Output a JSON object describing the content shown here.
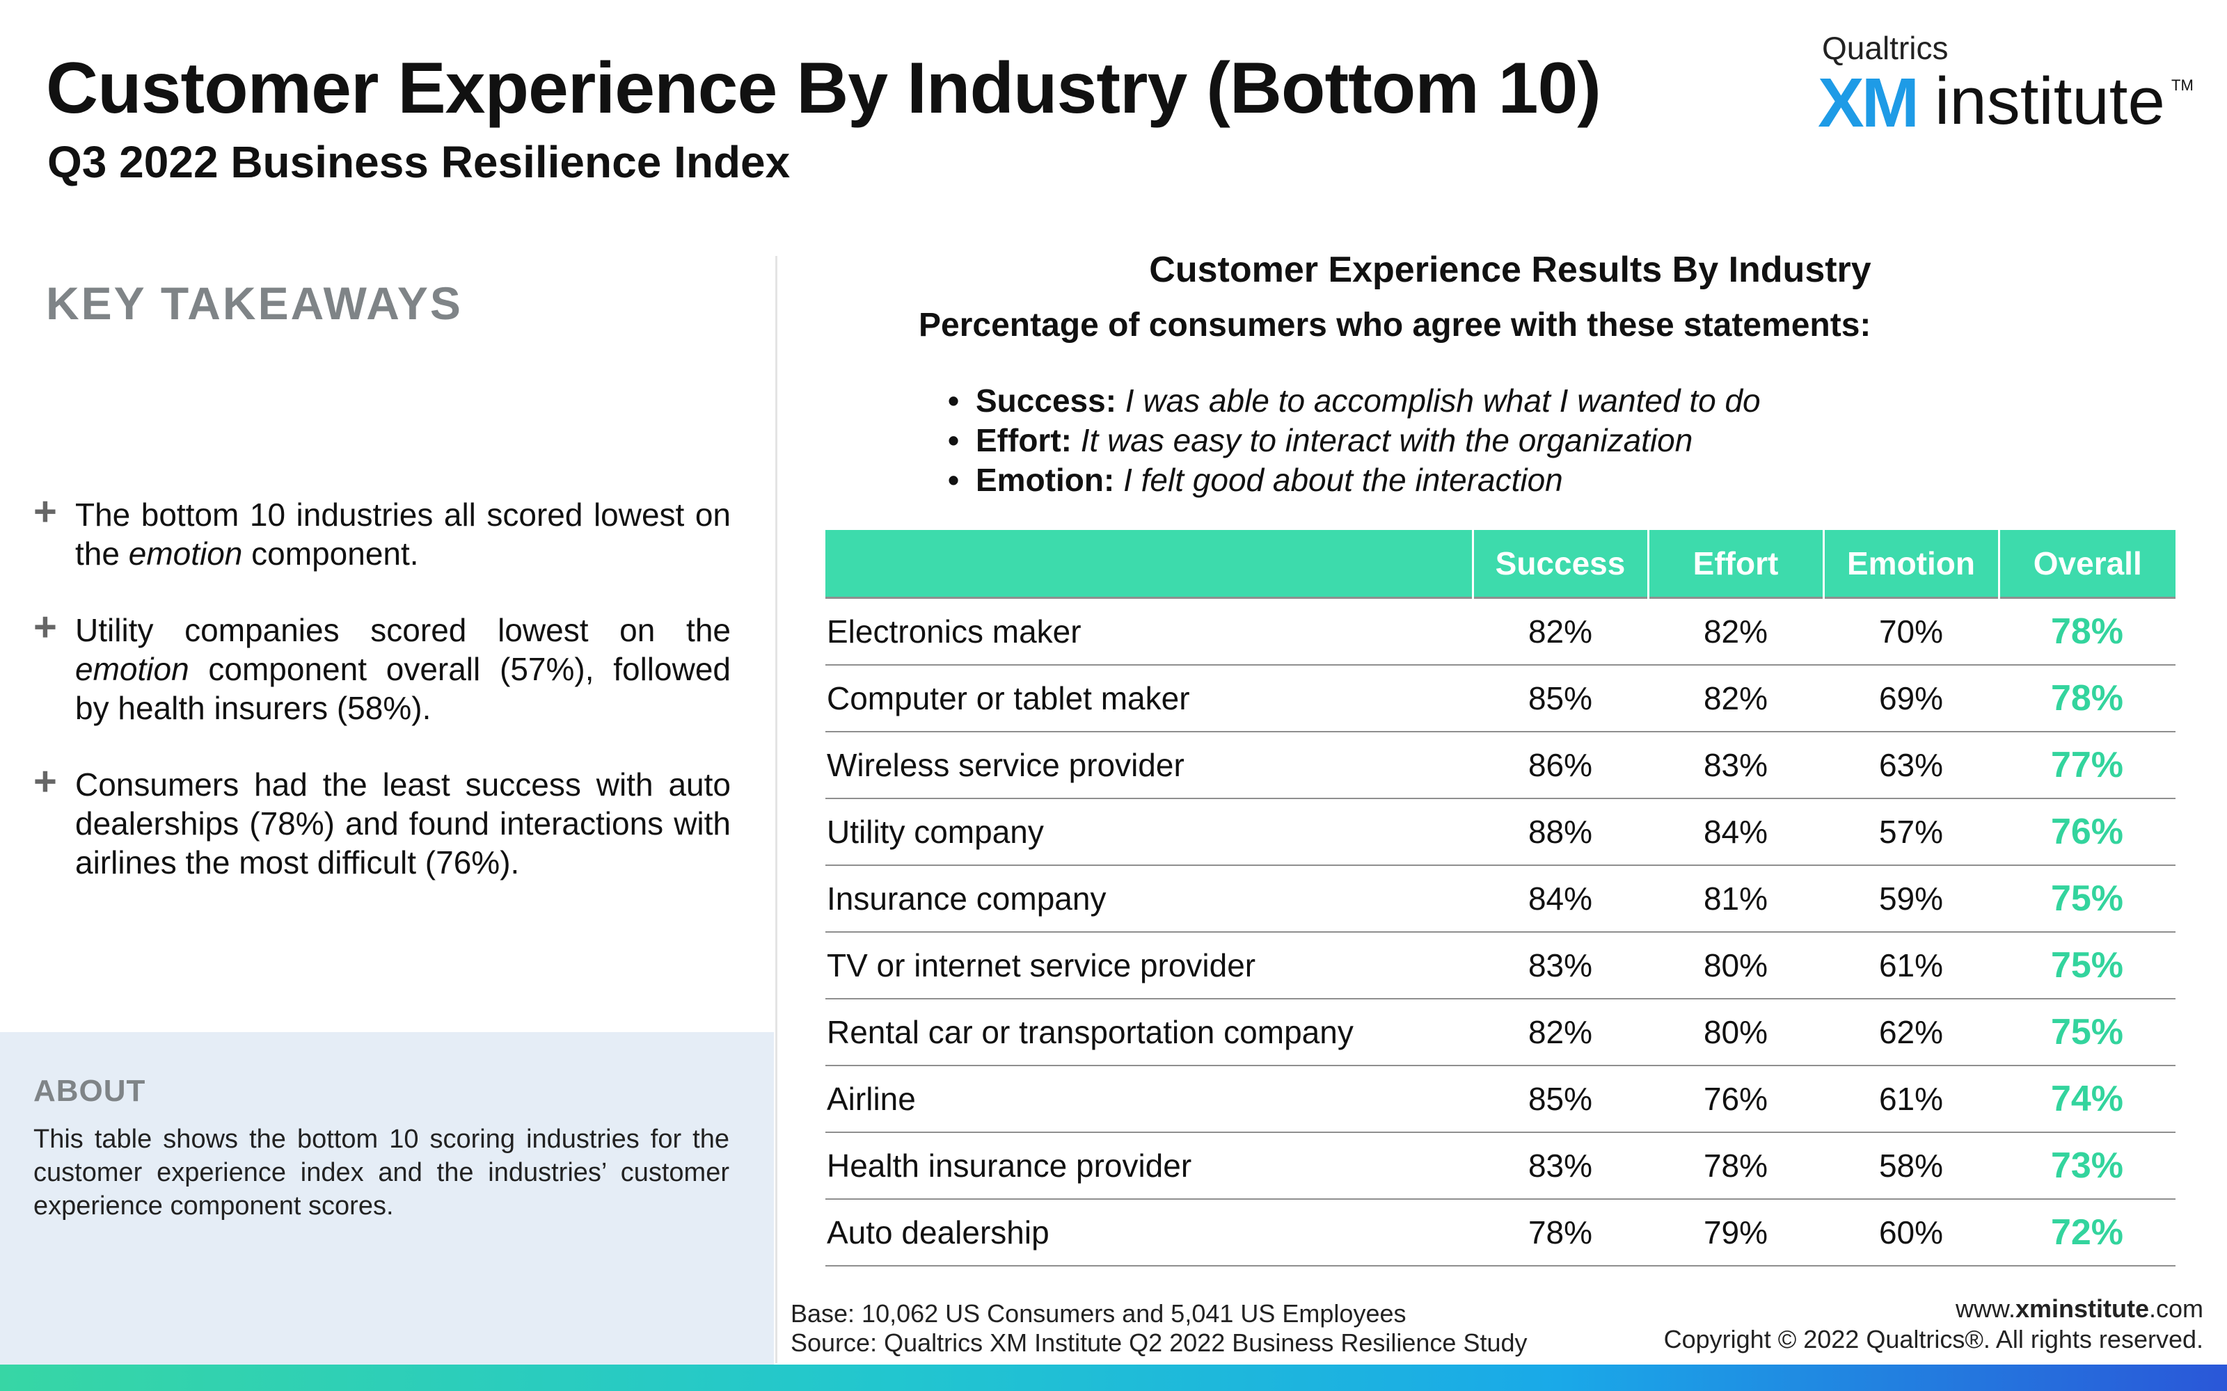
{
  "header": {
    "title": "Customer Experience By Industry (Bottom 10)",
    "subtitle": "Q3 2022 Business Resilience Index"
  },
  "logo": {
    "brand": "Qualtrics",
    "xm": "XM",
    "word": "institute",
    "tm": "TM"
  },
  "takeaways": {
    "heading": "KEY TAKEAWAYS",
    "plus": "+",
    "items": [
      {
        "before": "The bottom 10 industries all scored lowest on the ",
        "em": "emotion",
        "after": " component."
      },
      {
        "before": "Utility companies scored lowest on the ",
        "em": "emotion",
        "after": " component overall (57%), followed by health insurers (58%)."
      },
      {
        "before": "Consumers had the least success with auto dealerships (78%) and found interactions with airlines the most difficult (76%).",
        "em": "",
        "after": ""
      }
    ]
  },
  "about": {
    "heading": "ABOUT",
    "text": "This table shows the bottom 10 scoring industries for the customer experience index and the industries’ customer experience component scores."
  },
  "statements": [
    {
      "bullet": "•",
      "term": "Success:",
      "desc": "I was able to accomplish what I wanted to do"
    },
    {
      "bullet": "•",
      "term": "Effort:",
      "desc": "It was easy to interact with the organization"
    },
    {
      "bullet": "•",
      "term": "Emotion:",
      "desc": "I felt good about the interaction"
    }
  ],
  "chart_data": {
    "type": "table",
    "title": "Customer Experience Results By Industry",
    "subtitle": "Percentage of consumers who agree with these statements:",
    "columns": [
      "",
      "Success",
      "Effort",
      "Emotion",
      "Overall"
    ],
    "rows": [
      {
        "industry": "Electronics maker",
        "success": "82%",
        "effort": "82%",
        "emotion": "70%",
        "overall": "78%"
      },
      {
        "industry": "Computer or tablet maker",
        "success": "85%",
        "effort": "82%",
        "emotion": "69%",
        "overall": "78%"
      },
      {
        "industry": "Wireless service provider",
        "success": "86%",
        "effort": "83%",
        "emotion": "63%",
        "overall": "77%"
      },
      {
        "industry": "Utility company",
        "success": "88%",
        "effort": "84%",
        "emotion": "57%",
        "overall": "76%"
      },
      {
        "industry": "Insurance company",
        "success": "84%",
        "effort": "81%",
        "emotion": "59%",
        "overall": "75%"
      },
      {
        "industry": "TV or internet service provider",
        "success": "83%",
        "effort": "80%",
        "emotion": "61%",
        "overall": "75%"
      },
      {
        "industry": "Rental car or transportation company",
        "success": "82%",
        "effort": "80%",
        "emotion": "62%",
        "overall": "75%"
      },
      {
        "industry": "Airline",
        "success": "85%",
        "effort": "76%",
        "emotion": "61%",
        "overall": "74%"
      },
      {
        "industry": "Health insurance provider",
        "success": "83%",
        "effort": "78%",
        "emotion": "58%",
        "overall": "73%"
      },
      {
        "industry": "Auto dealership",
        "success": "78%",
        "effort": "79%",
        "emotion": "60%",
        "overall": "72%"
      }
    ],
    "header_color": "#3ddbac",
    "overall_color": "#33d49d"
  },
  "footer": {
    "base": "Base: 10,062 US Consumers and 5,041 US Employees",
    "source": "Source: Qualtrics XM Institute Q2 2022 Business Resilience Study",
    "url_prefix": "www.",
    "url_bold": "xminstitute",
    "url_suffix": ".com",
    "copyright": "Copyright © 2022 Qualtrics®. All rights reserved."
  }
}
